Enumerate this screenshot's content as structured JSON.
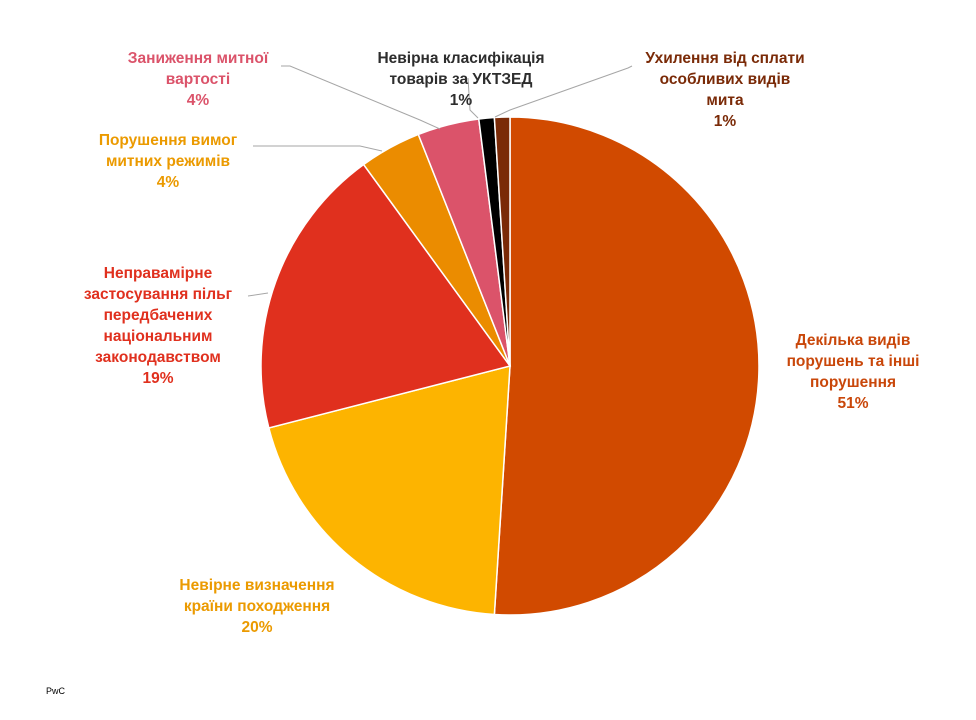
{
  "chart_data": {
    "type": "pie",
    "title": "",
    "start_angle_deg": 0,
    "direction": "clockwise",
    "slices": [
      {
        "name": "Декілька видів\nпорушень та інші\nпорушення",
        "value": 51,
        "label": "51%",
        "color": "#D14A00"
      },
      {
        "name": "Невірне визначення\nкраїни походження",
        "value": 20,
        "label": "20%",
        "color": "#FDB400"
      },
      {
        "name": "Неправамірне\nзастосування пільг\nпередбачених\nнаціональним\nзаконодавством",
        "value": 19,
        "label": "19%",
        "color": "#E0301E"
      },
      {
        "name": "Порушення вимог\nмитних режимів",
        "value": 4,
        "label": "4%",
        "color": "#EB8C00"
      },
      {
        "name": "Заниження митної\nвартості",
        "value": 4,
        "label": "4%",
        "color": "#DB536A"
      },
      {
        "name": "Невірна класифікація\nтоварів за УКТЗЕД",
        "value": 1,
        "label": "1%",
        "color": "#000000"
      },
      {
        "name": "Ухилення від сплати\nособливих видів\nмита",
        "value": 1,
        "label": "1%",
        "color": "#7A2A07"
      }
    ],
    "label_colors": [
      "#C9470A",
      "#EB9A00",
      "#E0301E",
      "#EB9A00",
      "#DB536A",
      "#2D2D2D",
      "#7A2A07"
    ]
  },
  "footer": {
    "source": "PwC"
  }
}
